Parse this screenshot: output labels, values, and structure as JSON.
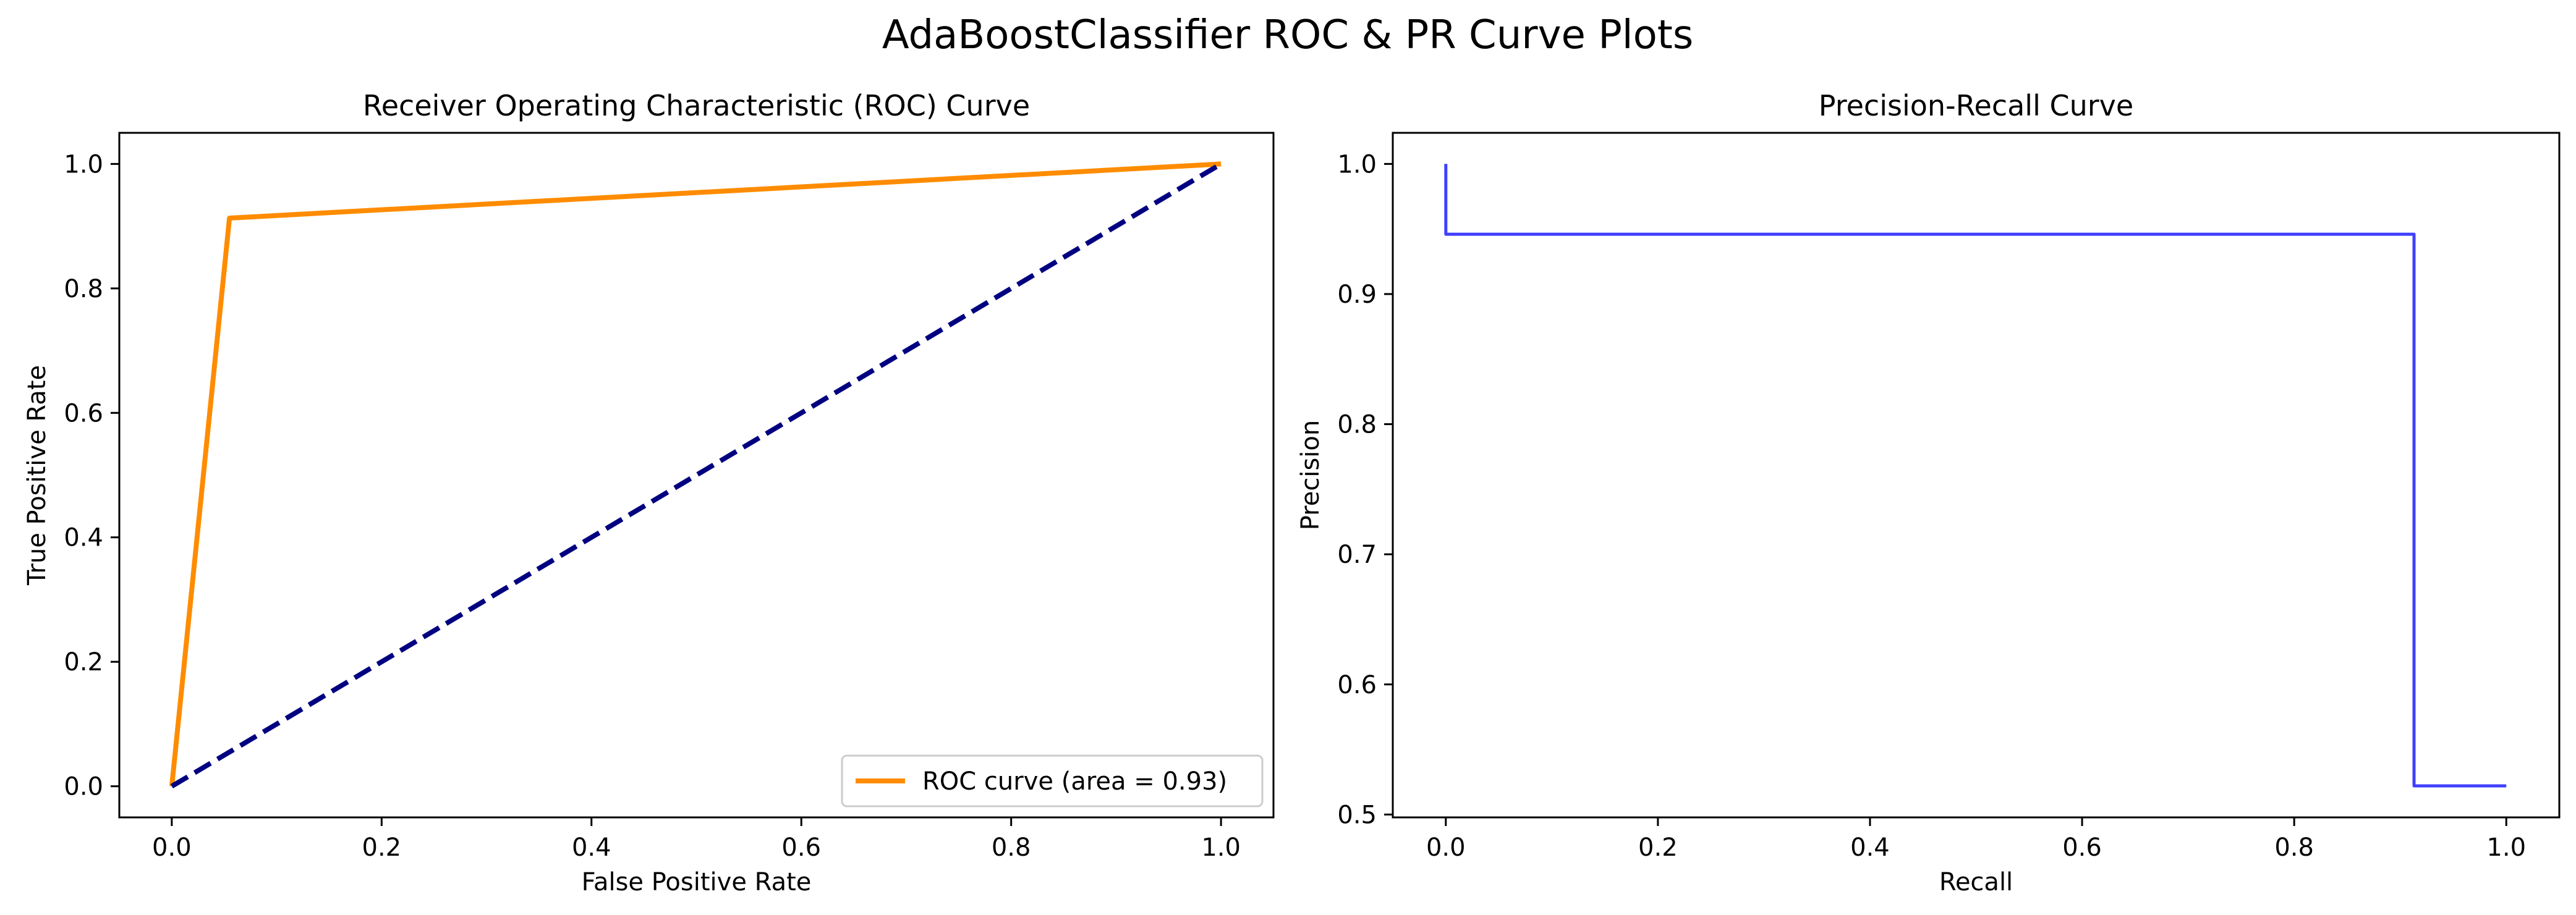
{
  "title": "AdaBoostClassifier ROC & PR Curve Plots",
  "colors": {
    "roc": "#ff8c00",
    "diagonal": "#000080",
    "pr": "#4040ff",
    "axes": "#000000",
    "legend_border": "#cccccc"
  },
  "chart_data": [
    {
      "type": "line",
      "title": "Receiver Operating Characteristic (ROC) Curve",
      "xlabel": "False Positive Rate",
      "ylabel": "True Positive Rate",
      "xlim": [
        -0.05,
        1.05
      ],
      "ylim": [
        -0.05,
        1.05
      ],
      "xticks": [
        0.0,
        0.2,
        0.4,
        0.6,
        0.8,
        1.0
      ],
      "yticks": [
        0.0,
        0.2,
        0.4,
        0.6,
        0.8,
        1.0
      ],
      "xtick_labels": [
        "0.0",
        "0.2",
        "0.4",
        "0.6",
        "0.8",
        "1.0"
      ],
      "ytick_labels": [
        "0.0",
        "0.2",
        "0.4",
        "0.6",
        "0.8",
        "1.0"
      ],
      "grid": false,
      "legend": "lower-right",
      "series": [
        {
          "name": "ROC curve (area = 0.93)",
          "x": [
            0.0,
            0.055,
            1.0
          ],
          "y": [
            0.0,
            0.913,
            1.0
          ],
          "color": "#ff8c00",
          "style": "solid"
        },
        {
          "x": [
            0.0,
            1.0
          ],
          "y": [
            0.0,
            1.0
          ],
          "color": "#000080",
          "style": "dashed"
        }
      ]
    },
    {
      "type": "line",
      "title": "Precision-Recall Curve",
      "xlabel": "Recall",
      "ylabel": "Precision",
      "xlim": [
        -0.05,
        1.05
      ],
      "ylim": [
        0.4978,
        1.0239
      ],
      "xticks": [
        0.0,
        0.2,
        0.4,
        0.6,
        0.8,
        1.0
      ],
      "yticks": [
        0.5,
        0.6,
        0.7,
        0.8,
        0.9,
        1.0
      ],
      "xtick_labels": [
        "0.0",
        "0.2",
        "0.4",
        "0.6",
        "0.8",
        "1.0"
      ],
      "ytick_labels": [
        "0.5",
        "0.6",
        "0.7",
        "0.8",
        "0.9",
        "1.0"
      ],
      "grid": false,
      "step": "post",
      "series": [
        {
          "x": [
            0.0,
            0.0,
            0.913,
            0.913,
            1.0
          ],
          "y": [
            1.0,
            0.946,
            0.946,
            0.522,
            0.522
          ],
          "color": "#4040ff",
          "style": "solid"
        }
      ]
    }
  ]
}
